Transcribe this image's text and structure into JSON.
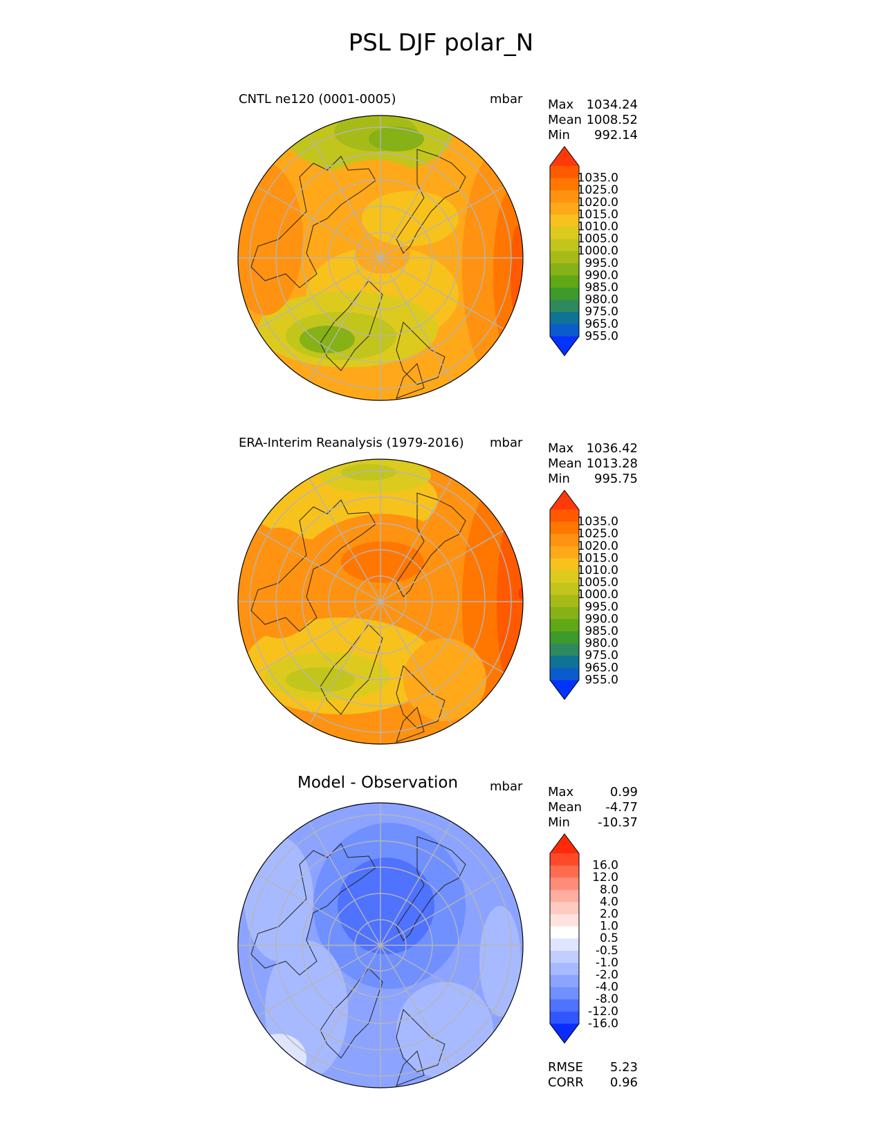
{
  "title": "PSL DJF polar_N",
  "chart_data": [
    {
      "type": "heatmap",
      "projection": "north polar stereographic",
      "title": "CNTL ne120 (0001-0005)",
      "units": "mbar",
      "stats": {
        "max": "1034.24",
        "mean": "1008.52",
        "min": "992.14"
      },
      "colorbar_levels": [
        "1035.0",
        "1025.0",
        "1020.0",
        "1015.0",
        "1010.0",
        "1005.0",
        "1000.0",
        "995.0",
        "990.0",
        "985.0",
        "980.0",
        "975.0",
        "965.0",
        "955.0"
      ],
      "colorbar_colors": [
        "#ff3a0a",
        "#ff5a00",
        "#ff7700",
        "#ff9210",
        "#ffa81a",
        "#f7c21c",
        "#dccb1e",
        "#c2c51c",
        "#a7bb18",
        "#86b117",
        "#5fa816",
        "#3e9a2b",
        "#2e8a5e",
        "#0f7395",
        "#0a5ccc",
        "#0432ff"
      ],
      "label_levels_fmt": "numeric"
    },
    {
      "type": "heatmap",
      "projection": "north polar stereographic",
      "title": "ERA-Interim Reanalysis (1979-2016)",
      "units": "mbar",
      "stats": {
        "max": "1036.42",
        "mean": "1013.28",
        "min": "995.75"
      },
      "colorbar_levels": [
        "1035.0",
        "1025.0",
        "1020.0",
        "1015.0",
        "1010.0",
        "1005.0",
        "1000.0",
        "995.0",
        "990.0",
        "985.0",
        "980.0",
        "975.0",
        "965.0",
        "955.0"
      ],
      "colorbar_colors": [
        "#ff3a0a",
        "#ff5a00",
        "#ff7700",
        "#ff9210",
        "#ffa81a",
        "#f7c21c",
        "#dccb1e",
        "#c2c51c",
        "#a7bb18",
        "#86b117",
        "#5fa816",
        "#3e9a2b",
        "#2e8a5e",
        "#0f7395",
        "#0a5ccc",
        "#0432ff"
      ]
    },
    {
      "type": "heatmap",
      "projection": "north polar stereographic",
      "title": "Model - Observation",
      "units": "mbar",
      "stats": {
        "max": "0.99",
        "mean": "-4.77",
        "min": "-10.37"
      },
      "rmse": "5.23",
      "corr": "0.96",
      "colorbar_levels": [
        "16.0",
        "12.0",
        "8.0",
        "4.0",
        "2.0",
        "1.0",
        "0.5",
        "-0.5",
        "-1.0",
        "-2.0",
        "-4.0",
        "-8.0",
        "-12.0",
        "-16.0"
      ],
      "colorbar_colors": [
        "#ff2a0a",
        "#ff4a2a",
        "#ff6c50",
        "#ff8c78",
        "#ffaea0",
        "#ffcac0",
        "#ffe3de",
        "#ffffff",
        "#dfe5ff",
        "#c2ceff",
        "#a8baff",
        "#8ca4ff",
        "#7090ff",
        "#4f72ff",
        "#3256ff",
        "#0a2cff"
      ]
    }
  ],
  "labels": {
    "max": "Max",
    "mean": "Mean",
    "min": "Min",
    "rmse": "RMSE",
    "corr": "CORR"
  }
}
